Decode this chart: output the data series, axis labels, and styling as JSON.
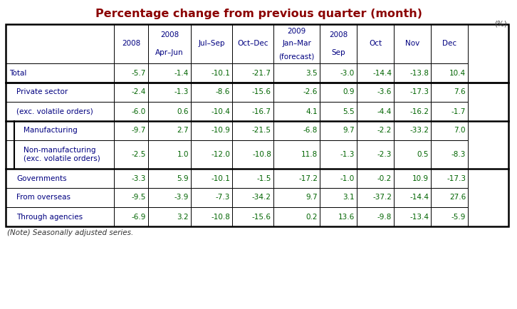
{
  "title": "Percentage change from previous quarter (month)",
  "title_color": "#8B0000",
  "unit_label": "(%)",
  "note": "(Note) Seasonally adjusted series.",
  "col_headers": [
    {
      "line1": "",
      "line2": "2008",
      "line3": ""
    },
    {
      "line1": "2008",
      "line2": "Apr–Jun",
      "line3": ""
    },
    {
      "line1": "",
      "line2": "Jul–Sep",
      "line3": ""
    },
    {
      "line1": "",
      "line2": "Oct–Dec",
      "line3": ""
    },
    {
      "line1": "2009",
      "line2": "Jan–Mar",
      "line3": "(forecast)"
    },
    {
      "line1": "2008",
      "line2": "Sep",
      "line3": ""
    },
    {
      "line1": "",
      "line2": "Oct",
      "line3": ""
    },
    {
      "line1": "",
      "line2": "Nov",
      "line3": ""
    },
    {
      "line1": "",
      "line2": "Dec",
      "line3": ""
    }
  ],
  "rows": [
    {
      "label": "Total",
      "indent": 0,
      "values": [
        "-5.7",
        "-1.4",
        "-10.1",
        "-21.7",
        "3.5",
        "-3.0",
        "-14.4",
        "-13.8",
        "10.4"
      ],
      "thick_top": true
    },
    {
      "label": "Private sector",
      "indent": 1,
      "values": [
        "-2.4",
        "-1.3",
        "-8.6",
        "-15.6",
        "-2.6",
        "0.9",
        "-3.6",
        "-17.3",
        "7.6"
      ],
      "thick_top": false
    },
    {
      "label": "(exc. volatile orders)",
      "indent": 1,
      "values": [
        "-6.0",
        "0.6",
        "-10.4",
        "-16.7",
        "4.1",
        "5.5",
        "-4.4",
        "-16.2",
        "-1.7"
      ],
      "thick_top": false
    },
    {
      "label": "Manufacturing",
      "indent": 2,
      "values": [
        "-9.7",
        "2.7",
        "-10.9",
        "-21.5",
        "-6.8",
        "9.7",
        "-2.2",
        "-33.2",
        "7.0"
      ],
      "thick_top": true
    },
    {
      "label": "Non-manufacturing\n(exc. volatile orders)",
      "indent": 2,
      "values": [
        "-2.5",
        "1.0",
        "-12.0",
        "-10.8",
        "11.8",
        "-1.3",
        "-2.3",
        "0.5",
        "-8.3"
      ],
      "thick_top": false
    },
    {
      "label": "Governments",
      "indent": 1,
      "values": [
        "-3.3",
        "5.9",
        "-10.1",
        "-1.5",
        "-17.2",
        "-1.0",
        "-0.2",
        "10.9",
        "-17.3"
      ],
      "thick_top": true
    },
    {
      "label": "From overseas",
      "indent": 1,
      "values": [
        "-9.5",
        "-3.9",
        "-7.3",
        "-34.2",
        "9.7",
        "3.1",
        "-37.2",
        "-14.4",
        "27.6"
      ],
      "thick_top": false
    },
    {
      "label": "Through agencies",
      "indent": 1,
      "values": [
        "-6.9",
        "3.2",
        "-10.8",
        "-15.6",
        "0.2",
        "13.6",
        "-9.8",
        "-13.4",
        "-5.9"
      ],
      "thick_top": false
    }
  ],
  "label_color": "#000080",
  "value_color": "#006400",
  "header_color": "#000080",
  "bg_color": "#FFFFFF"
}
